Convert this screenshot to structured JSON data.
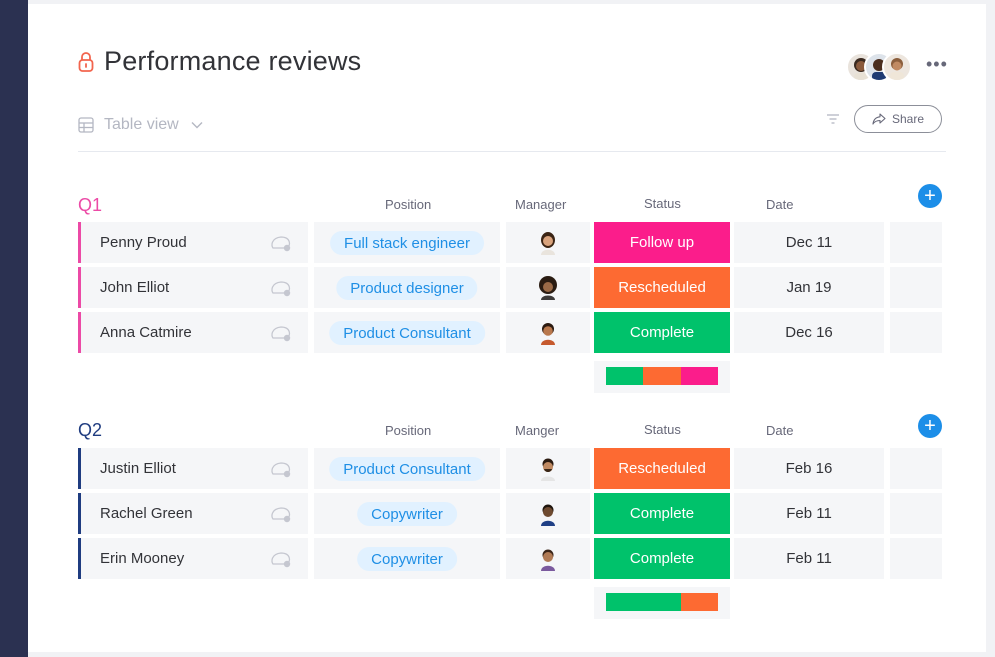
{
  "header": {
    "title": "Performance reviews",
    "view_label": "Table view",
    "share_label": "Share",
    "more_label": "•••"
  },
  "colors": {
    "follow_up": "#fb1d8b",
    "rescheduled": "#fd6a32",
    "complete": "#00c26b",
    "q1_accent": "#ec4aa6",
    "q2_accent": "#1f3c80",
    "plus_button": "#1c8ee8",
    "pill_text": "#1f8fe5",
    "pill_bg": "#e1f1ff",
    "sidebar": "#2b3151"
  },
  "groups": [
    {
      "title": "Q1",
      "headers": {
        "position": "Position",
        "manager": "Manager",
        "status": "Status",
        "date": "Date"
      },
      "rows": [
        {
          "name": "Penny Proud",
          "position": "Full stack engineer",
          "status": "Follow up",
          "date": "Dec 11"
        },
        {
          "name": "John Elliot",
          "position": "Product designer",
          "status": "Rescheduled",
          "date": "Jan 19"
        },
        {
          "name": "Anna Catmire",
          "position": "Product Consultant",
          "status": "Complete",
          "date": "Dec 16"
        }
      ],
      "status_summary": [
        {
          "status": "Complete",
          "fraction": 0.333
        },
        {
          "status": "Rescheduled",
          "fraction": 0.333
        },
        {
          "status": "Follow up",
          "fraction": 0.334
        }
      ]
    },
    {
      "title": "Q2",
      "headers": {
        "position": "Position",
        "manager": "Manger",
        "status": "Status",
        "date": "Date"
      },
      "rows": [
        {
          "name": "Justin Elliot",
          "position": "Product Consultant",
          "status": "Rescheduled",
          "date": "Feb 16"
        },
        {
          "name": "Rachel Green",
          "position": "Copywriter",
          "status": "Complete",
          "date": "Feb 11"
        },
        {
          "name": "Erin Mooney",
          "position": "Copywriter",
          "status": "Complete",
          "date": "Feb 11"
        }
      ],
      "status_summary": [
        {
          "status": "Complete",
          "fraction": 0.667
        },
        {
          "status": "Rescheduled",
          "fraction": 0.333
        }
      ]
    }
  ]
}
